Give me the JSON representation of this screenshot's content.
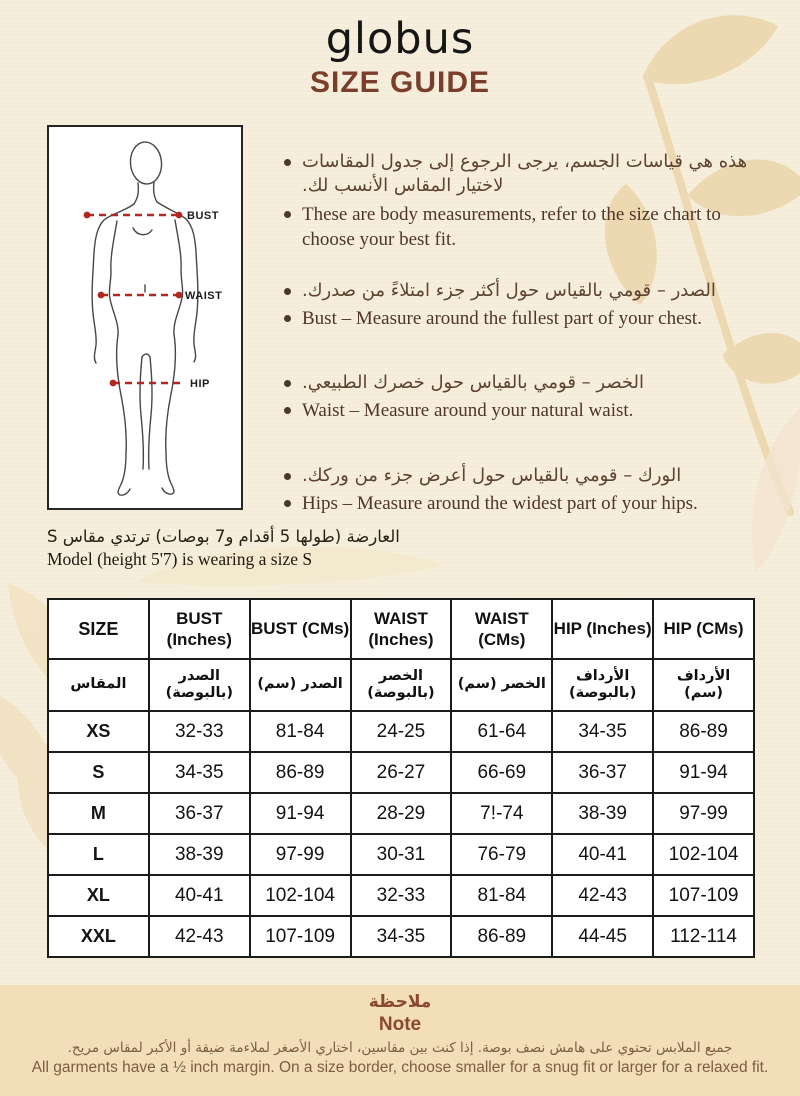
{
  "header": {
    "logo": "globus",
    "title": "SIZE GUIDE"
  },
  "diagram": {
    "bust_label": "BUST",
    "waist_label": "WAIST",
    "hip_label": "HIP"
  },
  "bullets": [
    {
      "lang": "ar",
      "text": "هذه هي قياسات الجسم، يرجى الرجوع إلى جدول المقاسات لاختيار المقاس الأنسب لك."
    },
    {
      "lang": "en",
      "text": "These are body measurements, refer to the size chart to choose your best fit."
    },
    {
      "lang": "ar",
      "text": "الصدر – قومي بالقياس حول أكثر جزء امتلاءً من صدرك."
    },
    {
      "lang": "en",
      "text": "Bust – Measure around the fullest part of your chest."
    },
    {
      "lang": "ar",
      "text": "الخصر – قومي بالقياس حول خصرك الطبيعي."
    },
    {
      "lang": "en",
      "text": "Waist – Measure around your natural waist."
    },
    {
      "lang": "ar",
      "text": "الورك – قومي بالقياس حول أعرض جزء من وركك."
    },
    {
      "lang": "en",
      "text": "Hips – Measure around the widest part of your hips."
    }
  ],
  "model_note": {
    "ar": "العارضة (طولها 5 أقدام و7 بوصات) ترتدي مقاس S",
    "en": "Model (height 5'7) is wearing a size S"
  },
  "table": {
    "headers_en": [
      "SIZE",
      "BUST (Inches)",
      "BUST (CMs)",
      "WAIST (Inches)",
      "WAIST (CMs)",
      "HIP (Inches)",
      "HIP (CMs)"
    ],
    "headers_ar": [
      "المقاس",
      "الصدر (بالبوصة)",
      "الصدر (سم)",
      "الخصر (بالبوصة)",
      "الخصر (سم)",
      "الأرداف (بالبوصة)",
      "الأرداف (سم)"
    ],
    "rows": [
      {
        "size": "XS",
        "cells": [
          "32-33",
          "81-84",
          "24-25",
          "61-64",
          "34-35",
          "86-89"
        ]
      },
      {
        "size": "S",
        "cells": [
          "34-35",
          "86-89",
          "26-27",
          "66-69",
          "36-37",
          "91-94"
        ]
      },
      {
        "size": "M",
        "cells": [
          "36-37",
          "91-94",
          "28-29",
          "7!-74",
          "38-39",
          "97-99"
        ]
      },
      {
        "size": "L",
        "cells": [
          "38-39",
          "97-99",
          "30-31",
          "76-79",
          "40-41",
          "102-104"
        ]
      },
      {
        "size": "XL",
        "cells": [
          "40-41",
          "102-104",
          "32-33",
          "81-84",
          "42-43",
          "107-109"
        ]
      },
      {
        "size": "XXL",
        "cells": [
          "42-43",
          "107-109",
          "34-35",
          "86-89",
          "44-45",
          "112-114"
        ]
      }
    ]
  },
  "footer": {
    "heading_ar": "ملاحظة",
    "heading_en": "Note",
    "body_ar": "جميع الملابس تحتوي على هامش نصف بوصة. إذا كنت بين مقاسين، اختاري الأصغر لملاءمة ضيقة أو الأكبر لمقاس مريح.",
    "body_en": "All garments have a ½ inch margin. On a size border, choose smaller for a snug fit or larger for a relaxed fit."
  },
  "colors": {
    "page_bg": "#f7eedb",
    "footer_bg": "#f2dfb9",
    "accent_brown": "#7b3e2b",
    "note_heading_brown": "#8a4731",
    "measure_red": "#b3271e",
    "table_border": "#1b1b1b",
    "leaf_beige": "#ecd8b1"
  }
}
